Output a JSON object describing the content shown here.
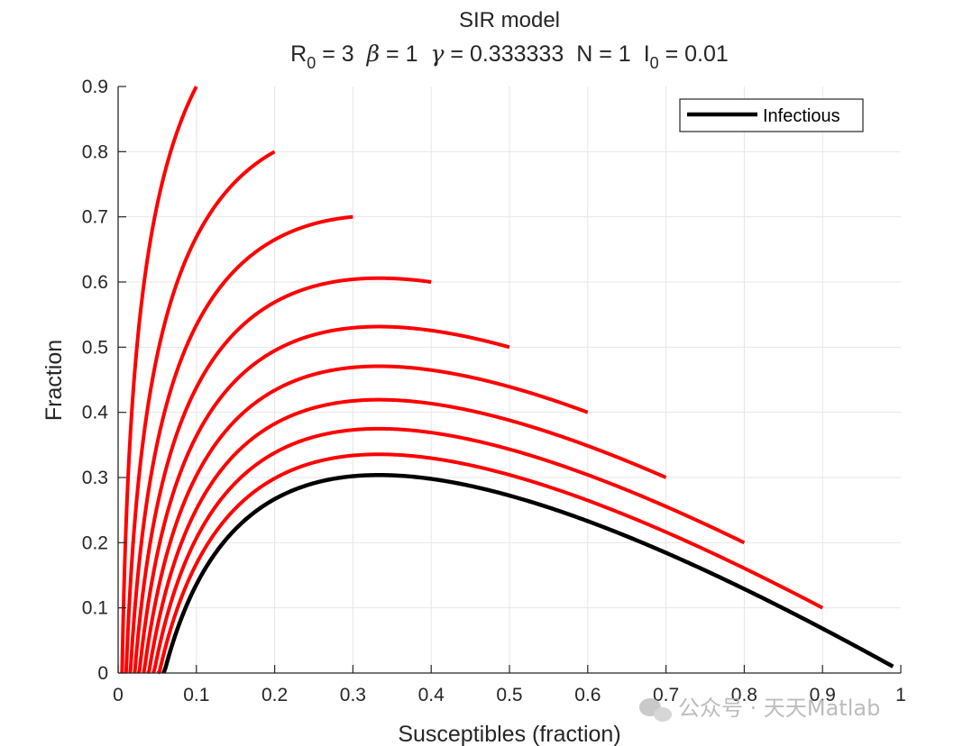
{
  "chart_data": {
    "type": "line",
    "title": "SIR model",
    "subtitle": {
      "r0_label": "R",
      "r0_sub": "0",
      "r0_value": " = 3",
      "beta_symbol": "β",
      "beta_value": " = 1",
      "gamma_symbol": "γ",
      "gamma_value": " = 0.333333",
      "n_text": "N = 1",
      "i0_label": "I",
      "i0_sub": "0",
      "i0_value": " = 0.01"
    },
    "xlabel": "Susceptibles (fraction)",
    "ylabel": "Fraction",
    "xlim": [
      0,
      1
    ],
    "ylim": [
      0,
      0.9
    ],
    "xticks": [
      "0",
      "0.1",
      "0.2",
      "0.3",
      "0.4",
      "0.5",
      "0.6",
      "0.7",
      "0.8",
      "0.9",
      "1"
    ],
    "yticks": [
      "0",
      "0.1",
      "0.2",
      "0.3",
      "0.4",
      "0.5",
      "0.6",
      "0.7",
      "0.8",
      "0.9"
    ],
    "grid": true,
    "legend_position": "top-right",
    "legend": [
      "Infectious"
    ],
    "R0": 3,
    "i_start_values": [
      0.1,
      0.2,
      0.3,
      0.4,
      0.5,
      0.6,
      0.7,
      0.8,
      0.9
    ],
    "main_curve": {
      "name": "Infectious",
      "s0": 0.99,
      "i0": 0.01,
      "color": "#000000"
    },
    "trajectory_color": "#ff0000"
  },
  "watermark": {
    "text": "公众号 · 天天Matlab",
    "icon": "wechat-icon"
  }
}
